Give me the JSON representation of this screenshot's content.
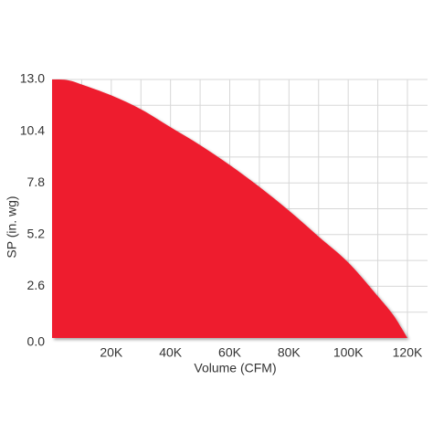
{
  "chart_data": {
    "type": "area",
    "title": "",
    "xlabel": "Volume (CFM)",
    "ylabel": "SP (in. wg)",
    "xlim": [
      0,
      120000
    ],
    "ylim": [
      0,
      13.0
    ],
    "x_ticks": [
      {
        "value": 20000,
        "label": "20K"
      },
      {
        "value": 40000,
        "label": "40K"
      },
      {
        "value": 60000,
        "label": "60K"
      },
      {
        "value": 80000,
        "label": "80K"
      },
      {
        "value": 100000,
        "label": "100K"
      },
      {
        "value": 120000,
        "label": "120K"
      }
    ],
    "y_ticks": [
      {
        "value": 0,
        "label": "0.0"
      },
      {
        "value": 2.6,
        "label": "2.6"
      },
      {
        "value": 5.2,
        "label": "5.2"
      },
      {
        "value": 7.8,
        "label": "7.8"
      },
      {
        "value": 10.4,
        "label": "10.4"
      },
      {
        "value": 13.0,
        "label": "13.0"
      }
    ],
    "grid": true,
    "grid_x_values": [
      10000,
      20000,
      30000,
      40000,
      50000,
      60000,
      70000,
      80000,
      90000,
      100000,
      110000,
      120000
    ],
    "grid_y_values": [
      1.3,
      2.6,
      3.9,
      5.2,
      6.5,
      7.8,
      9.1,
      10.4,
      11.7,
      13.0
    ],
    "series": [
      {
        "color": "#ee1c2e",
        "x": [
          0,
          5000,
          10000,
          20000,
          30000,
          40000,
          50000,
          60000,
          70000,
          80000,
          90000,
          100000,
          110000,
          115000,
          118000,
          120000
        ],
        "y": [
          13.0,
          12.97,
          12.75,
          12.2,
          11.5,
          10.6,
          9.7,
          8.7,
          7.6,
          6.4,
          5.1,
          3.8,
          2.1,
          1.2,
          0.5,
          0.0
        ]
      }
    ]
  }
}
